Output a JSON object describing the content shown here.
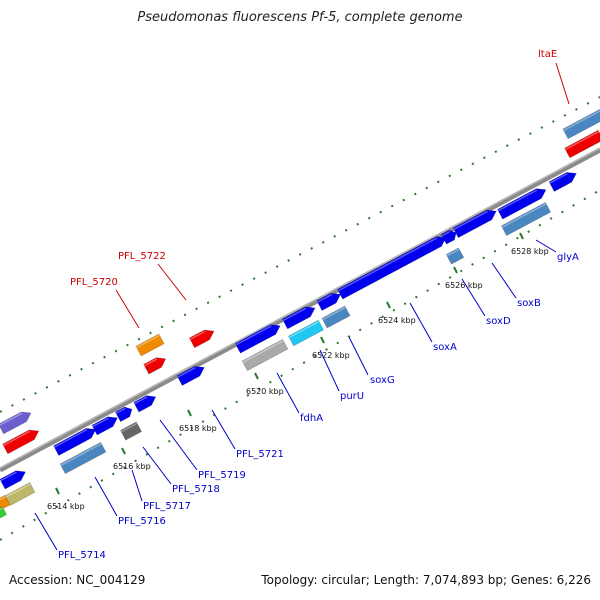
{
  "title": "Pseudomonas fluorescens Pf-5, complete genome",
  "footer": {
    "accession": "Accession: NC_004129",
    "stats": "Topology: circular; Length: 7,074,893 bp; Genes: 6,226"
  },
  "colors": {
    "forward_cds": "#0000ee",
    "gene_label_blue": "#0000cc",
    "gene_label_red": "#cc0000",
    "backbone": "#888888",
    "tick": "#228822"
  },
  "scale_ticks": [
    "6514 kbp",
    "6516 kbp",
    "6518 kbp",
    "6520 kbp",
    "6522 kbp",
    "6524 kbp",
    "6526 kbp",
    "6528 kbp"
  ],
  "gene_labels": [
    {
      "text": "ltaE",
      "color": "red"
    },
    {
      "text": "PFL_5722",
      "color": "red"
    },
    {
      "text": "PFL_5720",
      "color": "red"
    },
    {
      "text": "glyA",
      "color": "blue"
    },
    {
      "text": "soxB",
      "color": "blue"
    },
    {
      "text": "soxD",
      "color": "blue"
    },
    {
      "text": "soxA",
      "color": "blue"
    },
    {
      "text": "soxG",
      "color": "blue"
    },
    {
      "text": "purU",
      "color": "blue"
    },
    {
      "text": "fdhA",
      "color": "blue"
    },
    {
      "text": "PFL_5721",
      "color": "blue"
    },
    {
      "text": "PFL_5719",
      "color": "blue"
    },
    {
      "text": "PFL_5718",
      "color": "blue"
    },
    {
      "text": "PFL_5717",
      "color": "blue"
    },
    {
      "text": "PFL_5716",
      "color": "blue"
    },
    {
      "text": "PFL_5714",
      "color": "blue"
    }
  ]
}
